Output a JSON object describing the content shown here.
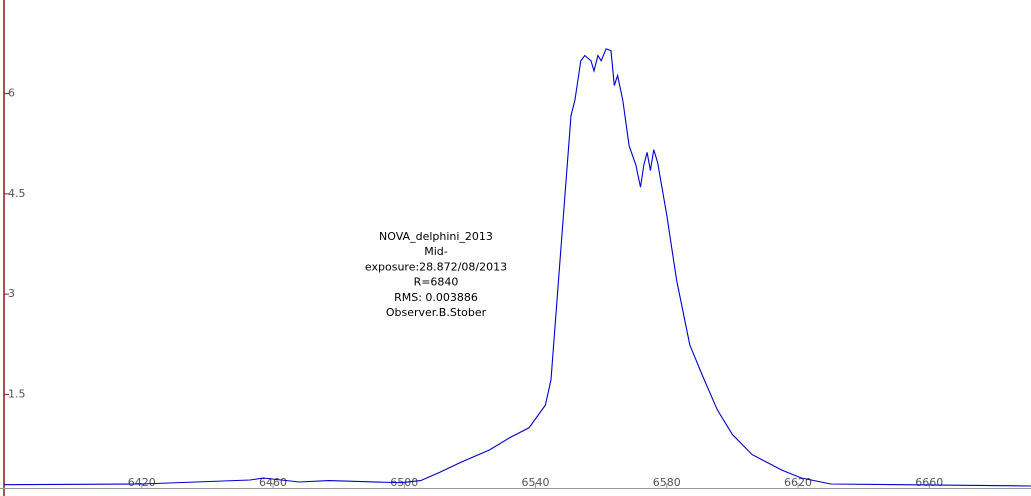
{
  "chart_data": {
    "type": "line",
    "annotation": [
      "NOVA_delphini_2013",
      "Mid-",
      "exposure:28.872/08/2013",
      "R=6840",
      "RMS: 0.003886",
      "Observer.B.Stober"
    ],
    "x": [
      6378,
      6420,
      6453,
      6457,
      6468,
      6477,
      6499,
      6505,
      6511,
      6517,
      6526,
      6532,
      6538,
      6543,
      6544.7,
      6547.7,
      6550.8,
      6552,
      6553.8,
      6555,
      6556.9,
      6557.8,
      6559,
      6560,
      6561.5,
      6563,
      6564,
      6565,
      6566.6,
      6568.5,
      6570.6,
      6572,
      6573,
      6574,
      6575,
      6576,
      6577.2,
      6580,
      6583,
      6587,
      6590.8,
      6595.4,
      6600,
      6606,
      6615,
      6621,
      6630,
      6691
    ],
    "values": [
      0.15,
      0.16,
      0.22,
      0.25,
      0.19,
      0.21,
      0.18,
      0.21,
      0.34,
      0.48,
      0.67,
      0.85,
      1.0,
      1.34,
      1.72,
      3.66,
      5.67,
      5.9,
      6.49,
      6.57,
      6.49,
      6.34,
      6.57,
      6.49,
      6.67,
      6.64,
      6.12,
      6.27,
      5.9,
      5.22,
      4.93,
      4.6,
      4.93,
      5.12,
      4.85,
      5.16,
      4.97,
      4.18,
      3.21,
      2.24,
      1.79,
      1.27,
      0.9,
      0.6,
      0.37,
      0.25,
      0.16,
      0.13
    ],
    "color": "#0000cc",
    "xlim": [
      6378,
      6691
    ],
    "ylim": [
      0.1,
      7.4
    ],
    "xticks": [
      6420,
      6460,
      6500,
      6540,
      6580,
      6620,
      6660
    ],
    "yticks": [
      1.5,
      3,
      4.5,
      6
    ]
  }
}
